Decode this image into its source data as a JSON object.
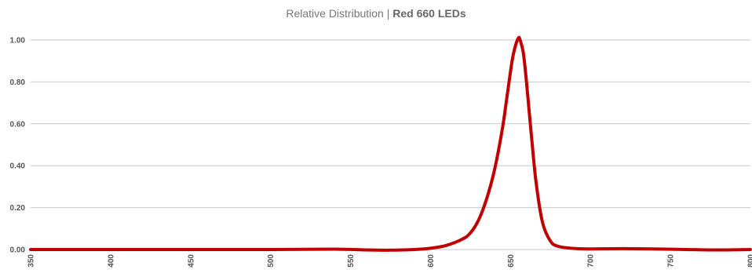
{
  "chart_data": {
    "type": "line",
    "title": "Relative Distribution | ",
    "title_bold": "Red 660 LEDs",
    "xlabel": "",
    "ylabel": "",
    "xlim": [
      350,
      800
    ],
    "ylim": [
      0,
      1.0
    ],
    "grid": true,
    "line_color": "#c00000",
    "x_ticks": [
      "350",
      "400",
      "450",
      "500",
      "550",
      "600",
      "650",
      "700",
      "750",
      "800"
    ],
    "y_ticks": [
      "0.00",
      "0.20",
      "0.40",
      "0.60",
      "0.80",
      "1.00"
    ],
    "series": [
      {
        "x": [
          350,
          400,
          450,
          500,
          540,
          560,
          575,
          590,
          600,
          610,
          620,
          625,
          630,
          635,
          640,
          645,
          648,
          651,
          653,
          655,
          656,
          658,
          660,
          663,
          666,
          670,
          675,
          680,
          690,
          700,
          720,
          740,
          760,
          780,
          800
        ],
        "y": [
          0,
          0,
          0,
          0,
          0.002,
          -0.002,
          -0.003,
          0.0,
          0.006,
          0.02,
          0.05,
          0.08,
          0.14,
          0.24,
          0.38,
          0.58,
          0.74,
          0.9,
          0.97,
          1.01,
          1.0,
          0.94,
          0.8,
          0.55,
          0.32,
          0.13,
          0.04,
          0.015,
          0.005,
          0.003,
          0.004,
          0.003,
          0.0,
          -0.002,
          0.0
        ]
      }
    ]
  }
}
